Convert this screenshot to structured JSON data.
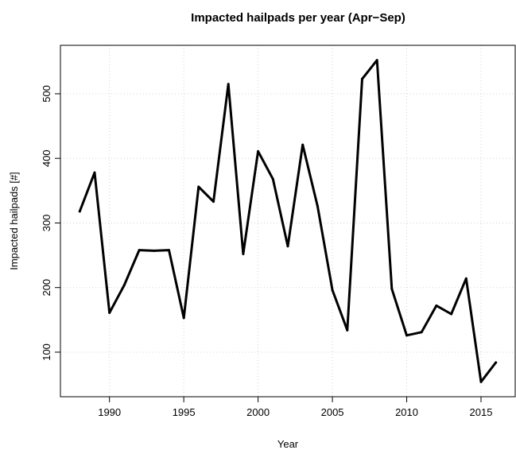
{
  "chart_data": {
    "type": "line",
    "title": "Impacted hailpads per year (Apr−Sep)",
    "xlabel": "Year",
    "ylabel": "Impacted hailpads [#]",
    "xlim": [
      1986.7,
      2017.3
    ],
    "ylim": [
      31,
      575
    ],
    "x_ticks": [
      1990,
      1995,
      2000,
      2005,
      2010,
      2015
    ],
    "y_ticks": [
      100,
      200,
      300,
      400,
      500
    ],
    "grid": true,
    "line_color": "#000000",
    "series": [
      {
        "x": [
          1988,
          1989,
          1990,
          1991,
          1992,
          1993,
          1994,
          1995,
          1996,
          1997,
          1998,
          1999,
          2000,
          2001,
          2002,
          2003,
          2004,
          2005,
          2006,
          2007,
          2008,
          2009,
          2010,
          2011,
          2012,
          2013,
          2014,
          2015,
          2016
        ],
        "values": [
          318,
          378,
          161,
          204,
          258,
          257,
          258,
          153,
          356,
          333,
          515,
          252,
          411,
          368,
          264,
          421,
          326,
          196,
          134,
          523,
          552,
          198,
          126,
          131,
          172,
          159,
          214,
          54,
          84
        ]
      }
    ]
  }
}
